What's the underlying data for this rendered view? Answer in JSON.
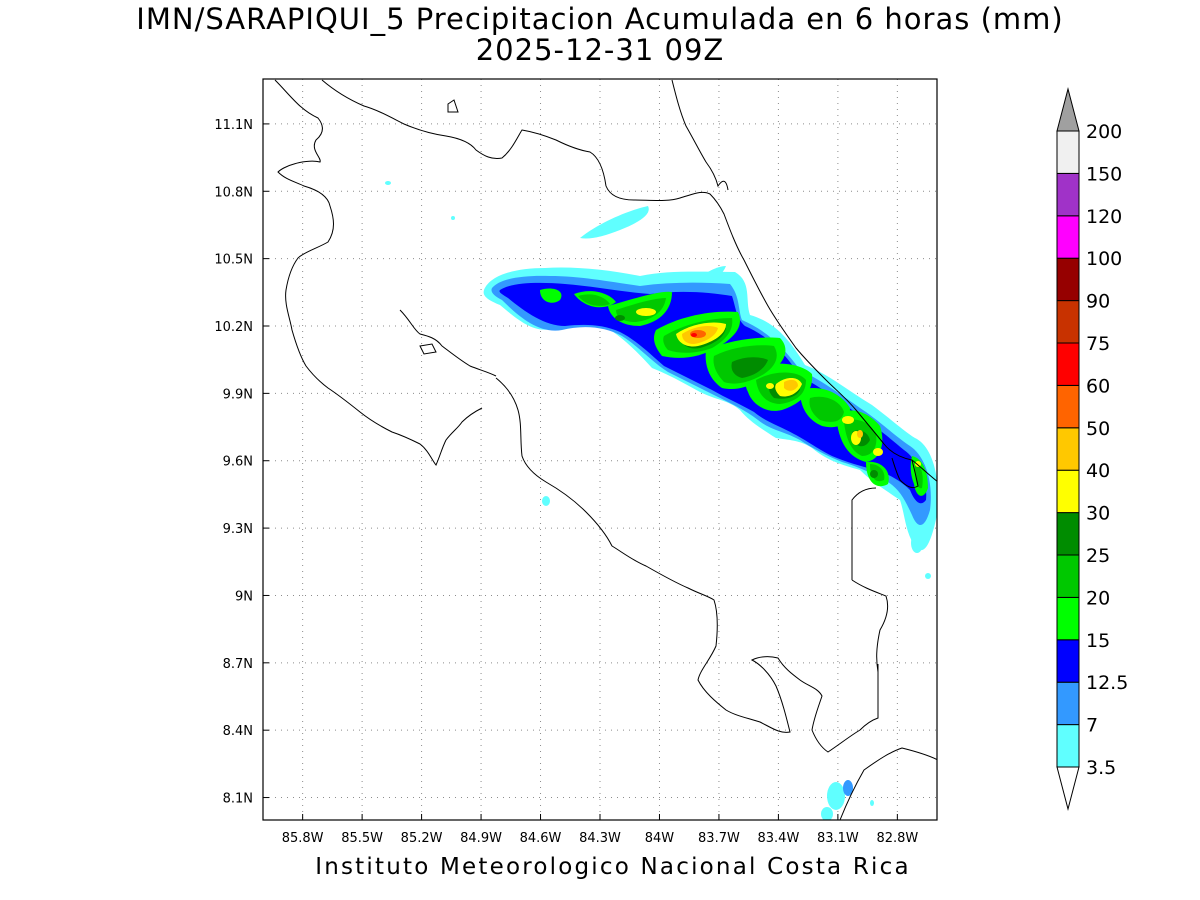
{
  "title": {
    "line1": "IMN/SARAPIQUI_5 Precipitacion Acumulada en 6 horas (mm)",
    "line2": "2025-12-31 09Z"
  },
  "credit": "Instituto Meteorologico Nacional Costa Rica",
  "map": {
    "lon_range": [
      -86.0,
      -82.6
    ],
    "lat_range": [
      8.0,
      11.3
    ],
    "lon_ticks": [
      {
        "value": -85.8,
        "label": "85.8W"
      },
      {
        "value": -85.5,
        "label": "85.5W"
      },
      {
        "value": -85.2,
        "label": "85.2W"
      },
      {
        "value": -84.9,
        "label": "84.9W"
      },
      {
        "value": -84.6,
        "label": "84.6W"
      },
      {
        "value": -84.3,
        "label": "84.3W"
      },
      {
        "value": -84.0,
        "label": "84W"
      },
      {
        "value": -83.7,
        "label": "83.7W"
      },
      {
        "value": -83.4,
        "label": "83.4W"
      },
      {
        "value": -83.1,
        "label": "83.1W"
      },
      {
        "value": -82.8,
        "label": "82.8W"
      }
    ],
    "lat_ticks": [
      {
        "value": 11.1,
        "label": "11.1N"
      },
      {
        "value": 10.8,
        "label": "10.8N"
      },
      {
        "value": 10.5,
        "label": "10.5N"
      },
      {
        "value": 10.2,
        "label": "10.2N"
      },
      {
        "value": 9.9,
        "label": "9.9N"
      },
      {
        "value": 9.6,
        "label": "9.6N"
      },
      {
        "value": 9.3,
        "label": "9.3N"
      },
      {
        "value": 9.0,
        "label": "9N"
      },
      {
        "value": 8.7,
        "label": "8.7N"
      },
      {
        "value": 8.4,
        "label": "8.4N"
      },
      {
        "value": 8.1,
        "label": "8.1N"
      }
    ],
    "grid": "dotted"
  },
  "colorbar": {
    "units": "mm",
    "over_color": "#a0a0a0",
    "under_color": "#ffffff",
    "levels": [
      {
        "label": "3.5",
        "color": "#60ffff"
      },
      {
        "label": "7",
        "color": "#3399ff"
      },
      {
        "label": "12.5",
        "color": "#0000ff"
      },
      {
        "label": "15",
        "color": "#00ff00"
      },
      {
        "label": "20",
        "color": "#00c800"
      },
      {
        "label": "25",
        "color": "#008c00"
      },
      {
        "label": "30",
        "color": "#ffff00"
      },
      {
        "label": "40",
        "color": "#ffc800"
      },
      {
        "label": "50",
        "color": "#ff6400"
      },
      {
        "label": "60",
        "color": "#ff0000"
      },
      {
        "label": "75",
        "color": "#c83200"
      },
      {
        "label": "90",
        "color": "#960000"
      },
      {
        "label": "100",
        "color": "#ff00ff"
      },
      {
        "label": "120",
        "color": "#a032c8"
      },
      {
        "label": "150",
        "color": "#f0f0f0"
      },
      {
        "label": "200",
        "color": ""
      }
    ]
  },
  "precipitation_zones": [
    {
      "level_mm": 3.5,
      "location": "band from 84.9W,10.4N to 82.6W,9.3N along Caribbean slope"
    },
    {
      "level_mm": 30,
      "location": "near 83.8W,10.15N"
    },
    {
      "level_mm": 40,
      "location": "near 83.85W,10.15N"
    }
  ]
}
